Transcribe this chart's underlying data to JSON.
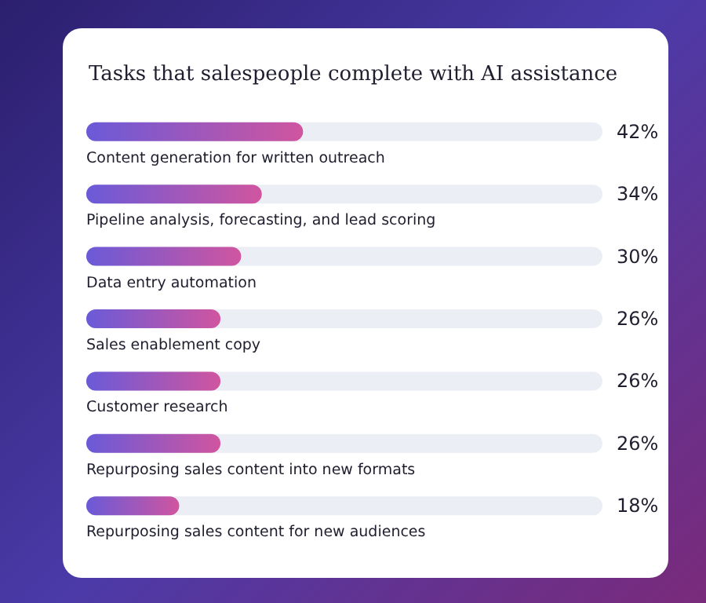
{
  "chart_data": {
    "type": "bar",
    "orientation": "horizontal",
    "title": "Tasks that salespeople complete with AI assistance",
    "categories": [
      "Content generation for written outreach",
      "Pipeline analysis, forecasting, and lead scoring",
      "Data entry automation",
      "Sales enablement copy",
      "Customer research",
      "Repurposing sales content into new formats",
      "Repurposing sales content for new audiences"
    ],
    "values": [
      42,
      34,
      30,
      26,
      26,
      26,
      18
    ],
    "value_labels": [
      "42%",
      "34%",
      "30%",
      "26%",
      "26%",
      "26%",
      "18%"
    ],
    "color": "#d0559f",
    "xlim": [
      0,
      100
    ]
  }
}
